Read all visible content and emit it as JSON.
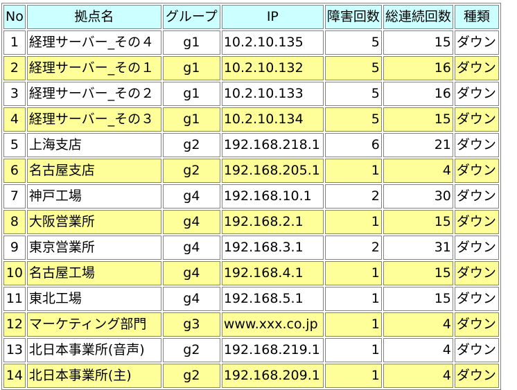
{
  "table": {
    "headers": {
      "no": "No",
      "site": "拠点名",
      "group": "グループ",
      "ip": "IP",
      "fail": "障害回数",
      "total": "総連続回数",
      "type": "種類"
    },
    "rows": [
      {
        "no": "1",
        "site": "経理サーバー_その４",
        "group": "g1",
        "ip": "10.2.10.135",
        "fail": "5",
        "total": "15",
        "type": "ダウン"
      },
      {
        "no": "2",
        "site": "経理サーバー_その１",
        "group": "g1",
        "ip": "10.2.10.132",
        "fail": "5",
        "total": "16",
        "type": "ダウン"
      },
      {
        "no": "3",
        "site": "経理サーバー_その２",
        "group": "g1",
        "ip": "10.2.10.133",
        "fail": "5",
        "total": "16",
        "type": "ダウン"
      },
      {
        "no": "4",
        "site": "経理サーバー_その３",
        "group": "g1",
        "ip": "10.2.10.134",
        "fail": "5",
        "total": "15",
        "type": "ダウン"
      },
      {
        "no": "5",
        "site": "上海支店",
        "group": "g2",
        "ip": "192.168.218.1",
        "fail": "6",
        "total": "21",
        "type": "ダウン"
      },
      {
        "no": "6",
        "site": "名古屋支店",
        "group": "g2",
        "ip": "192.168.205.1",
        "fail": "1",
        "total": "4",
        "type": "ダウン"
      },
      {
        "no": "7",
        "site": "神戸工場",
        "group": "g4",
        "ip": "192.168.10.1",
        "fail": "2",
        "total": "30",
        "type": "ダウン"
      },
      {
        "no": "8",
        "site": "大阪営業所",
        "group": "g4",
        "ip": "192.168.2.1",
        "fail": "1",
        "total": "15",
        "type": "ダウン"
      },
      {
        "no": "9",
        "site": "東京営業所",
        "group": "g4",
        "ip": "192.168.3.1",
        "fail": "2",
        "total": "31",
        "type": "ダウン"
      },
      {
        "no": "10",
        "site": "名古屋工場",
        "group": "g4",
        "ip": "192.168.4.1",
        "fail": "1",
        "total": "15",
        "type": "ダウン"
      },
      {
        "no": "11",
        "site": "東北工場",
        "group": "g4",
        "ip": "192.168.5.1",
        "fail": "1",
        "total": "15",
        "type": "ダウン"
      },
      {
        "no": "12",
        "site": "マーケティング部門",
        "group": "g3",
        "ip": "www.xxx.co.jp",
        "fail": "1",
        "total": "4",
        "type": "ダウン"
      },
      {
        "no": "13",
        "site": "北日本事業所(音声)",
        "group": "g2",
        "ip": "192.168.219.1",
        "fail": "1",
        "total": "4",
        "type": "ダウン"
      },
      {
        "no": "14",
        "site": "北日本事業所(主)",
        "group": "g2",
        "ip": "192.168.209.1",
        "fail": "1",
        "total": "4",
        "type": "ダウン"
      }
    ]
  },
  "colors": {
    "header_bg": "#ccffff",
    "alt_row_bg": "#ffff99",
    "row_bg": "#ffffff",
    "border": "#808080"
  }
}
